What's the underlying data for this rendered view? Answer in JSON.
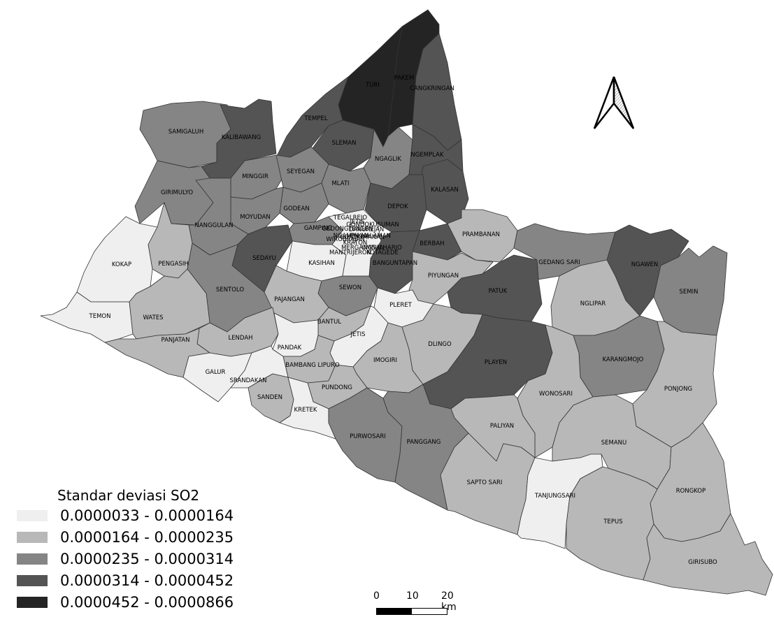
{
  "legend": {
    "title": "Standar deviasi SO2",
    "classes": [
      {
        "label": "0.0000033 - 0.0000164",
        "color": "#efefef"
      },
      {
        "label": "0.0000164 - 0.0000235",
        "color": "#b8b8b8"
      },
      {
        "label": "0.0000235 - 0.0000314",
        "color": "#858585"
      },
      {
        "label": "0.0000314 - 0.0000452",
        "color": "#545454"
      },
      {
        "label": "0.0000452 - 0.0000866",
        "color": "#242424"
      }
    ]
  },
  "scale_bar": {
    "ticks": [
      "0",
      "10",
      "20 km"
    ]
  },
  "north_arrow": {
    "icon": "north-arrow-icon"
  },
  "districts": [
    {
      "name": "TURI",
      "class": 4
    },
    {
      "name": "PAKEM",
      "class": 4
    },
    {
      "name": "CANGKRINGAN",
      "class": 3
    },
    {
      "name": "TEMPEL",
      "class": 3
    },
    {
      "name": "SLEMAN",
      "class": 3
    },
    {
      "name": "NGAGLIK",
      "class": 2
    },
    {
      "name": "NGEMPLAK",
      "class": 3
    },
    {
      "name": "KALASAN",
      "class": 3
    },
    {
      "name": "SAMIGALUH",
      "class": 2
    },
    {
      "name": "KALIBAWANG",
      "class": 3
    },
    {
      "name": "MINGGIR",
      "class": 2
    },
    {
      "name": "SEYEGAN",
      "class": 2
    },
    {
      "name": "MLATI",
      "class": 2
    },
    {
      "name": "GIRIMULYO",
      "class": 2
    },
    {
      "name": "GODEAN",
      "class": 2
    },
    {
      "name": "MOYUDAN",
      "class": 2
    },
    {
      "name": "DEPOK",
      "class": 3
    },
    {
      "name": "NANGGULAN",
      "class": 2
    },
    {
      "name": "GAMPING",
      "class": 2
    },
    {
      "name": "PRAMBANAN",
      "class": 1
    },
    {
      "name": "BERBAH",
      "class": 3
    },
    {
      "name": "KOKAP",
      "class": 0
    },
    {
      "name": "PENGASIH",
      "class": 1
    },
    {
      "name": "SEDAYU",
      "class": 3
    },
    {
      "name": "KASIHAN",
      "class": 0
    },
    {
      "name": "BANGUNTAPAN",
      "class": 3
    },
    {
      "name": "GEDANG SARI",
      "class": 2
    },
    {
      "name": "NGAWEN",
      "class": 3
    },
    {
      "name": "PIYUNGAN",
      "class": 1
    },
    {
      "name": "SENTOLO",
      "class": 2
    },
    {
      "name": "SEWON",
      "class": 2
    },
    {
      "name": "PATUK",
      "class": 3
    },
    {
      "name": "SEMIN",
      "class": 2
    },
    {
      "name": "PAJANGAN",
      "class": 1
    },
    {
      "name": "PLERET",
      "class": 0
    },
    {
      "name": "NGLIPAR",
      "class": 1
    },
    {
      "name": "TEMON",
      "class": 0
    },
    {
      "name": "WATES",
      "class": 1
    },
    {
      "name": "BANTUL",
      "class": 1
    },
    {
      "name": "JETIS",
      "class": 0
    },
    {
      "name": "LENDAH",
      "class": 1
    },
    {
      "name": "PANJATAN",
      "class": 1
    },
    {
      "name": "DLINGO",
      "class": 1
    },
    {
      "name": "PANDAK",
      "class": 0
    },
    {
      "name": "IMOGIRI",
      "class": 1
    },
    {
      "name": "PLAYEN",
      "class": 3
    },
    {
      "name": "KARANGMOJO",
      "class": 2
    },
    {
      "name": "BAMBANG LIPURO",
      "class": 1
    },
    {
      "name": "GALUR",
      "class": 0
    },
    {
      "name": "SRANDAKAN",
      "class": 0
    },
    {
      "name": "PUNDONG",
      "class": 1
    },
    {
      "name": "PONJONG",
      "class": 1
    },
    {
      "name": "WONOSARI",
      "class": 1
    },
    {
      "name": "SANDEN",
      "class": 1
    },
    {
      "name": "KRETEK",
      "class": 0
    },
    {
      "name": "PALIYAN",
      "class": 1
    },
    {
      "name": "PURWOSARI",
      "class": 2
    },
    {
      "name": "PANGGANG",
      "class": 2
    },
    {
      "name": "SEMANU",
      "class": 1
    },
    {
      "name": "SAPTO SARI",
      "class": 1
    },
    {
      "name": "TANJUNGSARI",
      "class": 0
    },
    {
      "name": "RONGKOP",
      "class": 1
    },
    {
      "name": "TEPUS",
      "class": 1
    },
    {
      "name": "GIRISUBO",
      "class": 1
    },
    {
      "name": "TEGALREJO",
      "class": 0
    },
    {
      "name": "JETIS",
      "class": 0
    },
    {
      "name": "GONDOKUSUMAN",
      "class": 0
    },
    {
      "name": "GEDONGTENGEN",
      "class": 0
    },
    {
      "name": "DANUREJAN",
      "class": 0
    },
    {
      "name": "NGAMPILAN",
      "class": 0
    },
    {
      "name": "GONDOMANAN",
      "class": 0
    },
    {
      "name": "WIROBRAJAN",
      "class": 0
    },
    {
      "name": "PAKUALAMAN",
      "class": 0
    },
    {
      "name": "KRATON",
      "class": 0
    },
    {
      "name": "MERGANGSAN",
      "class": 0
    },
    {
      "name": "UMBULHARJO",
      "class": 0
    },
    {
      "name": "MANTRIJERON",
      "class": 0
    },
    {
      "name": "KOTAGEDE",
      "class": 0
    }
  ]
}
